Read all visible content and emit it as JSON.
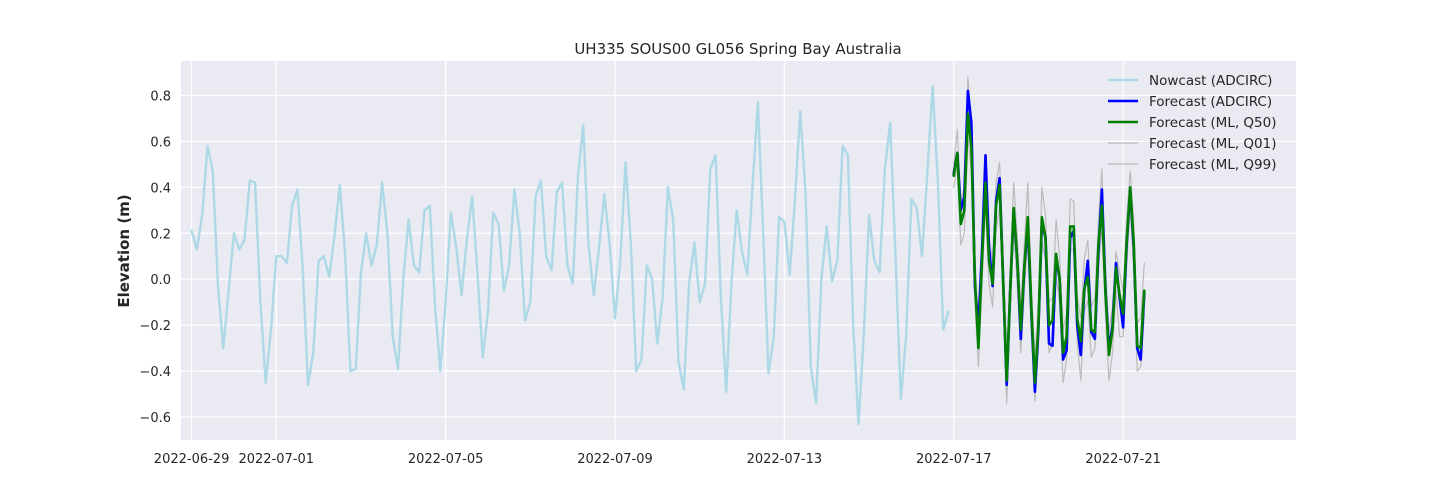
{
  "chart_data": {
    "type": "line",
    "title": "UH335 SOUS00 GL056 Spring Bay Australia",
    "xlabel": "",
    "ylabel": "Elevation (m)",
    "x_axis": "date",
    "xlim": [
      "2022-06-28T18:00",
      "2022-07-25T02:00"
    ],
    "ylim": [
      -0.7,
      0.95
    ],
    "x_ticks": [
      "2022-06-29",
      "2022-07-01",
      "2022-07-05",
      "2022-07-09",
      "2022-07-13",
      "2022-07-17",
      "2022-07-21"
    ],
    "y_ticks": [
      -0.6,
      -0.4,
      -0.2,
      0.0,
      0.2,
      0.4,
      0.6,
      0.8
    ],
    "y_tick_labels": [
      "−0.6",
      "−0.4",
      "−0.2",
      "0.0",
      "0.2",
      "0.4",
      "0.6",
      "0.8"
    ],
    "grid": true,
    "legend_position": "top-right",
    "background": "#eaeaf2",
    "series": [
      {
        "name": "Nowcast (ADCIRC)",
        "color": "#add8e6",
        "x_start": "2022-06-29T00:00",
        "step_hours": 3,
        "values": [
          0.21,
          0.13,
          0.28,
          0.58,
          0.47,
          -0.03,
          -0.3,
          -0.05,
          0.2,
          0.13,
          0.17,
          0.43,
          0.42,
          -0.1,
          -0.45,
          -0.22,
          0.1,
          0.1,
          0.07,
          0.32,
          0.39,
          0.05,
          -0.46,
          -0.32,
          0.08,
          0.1,
          0.01,
          0.19,
          0.41,
          0.11,
          -0.4,
          -0.39,
          0.03,
          0.2,
          0.06,
          0.15,
          0.42,
          0.2,
          -0.25,
          -0.39,
          0.0,
          0.26,
          0.06,
          0.03,
          0.3,
          0.32,
          -0.12,
          -0.4,
          -0.1,
          0.29,
          0.14,
          -0.07,
          0.17,
          0.36,
          0.03,
          -0.34,
          -0.14,
          0.29,
          0.24,
          -0.05,
          0.06,
          0.39,
          0.2,
          -0.18,
          -0.1,
          0.36,
          0.43,
          0.1,
          0.04,
          0.38,
          0.42,
          0.06,
          -0.02,
          0.45,
          0.67,
          0.15,
          -0.07,
          0.14,
          0.37,
          0.15,
          -0.17,
          0.08,
          0.51,
          0.15,
          -0.4,
          -0.35,
          0.06,
          0.0,
          -0.28,
          -0.08,
          0.4,
          0.26,
          -0.36,
          -0.48,
          -0.02,
          0.16,
          -0.1,
          -0.02,
          0.48,
          0.54,
          -0.08,
          -0.49,
          -0.02,
          0.3,
          0.12,
          0.02,
          0.41,
          0.77,
          0.2,
          -0.41,
          -0.25,
          0.27,
          0.25,
          0.02,
          0.35,
          0.73,
          0.38,
          -0.38,
          -0.54,
          0.0,
          0.23,
          -0.01,
          0.08,
          0.58,
          0.54,
          -0.2,
          -0.63,
          -0.24,
          0.28,
          0.08,
          0.03,
          0.48,
          0.68,
          0.1,
          -0.52,
          -0.25,
          0.35,
          0.31,
          0.1,
          0.46,
          0.84,
          0.42,
          -0.22,
          -0.14
        ]
      },
      {
        "name": "Forecast (ADCIRC)",
        "color": "#0000ff",
        "x_start": "2022-07-17T00:00",
        "step_hours": 2,
        "values": [
          0.46,
          0.55,
          0.3,
          0.36,
          0.82,
          0.68,
          -0.03,
          -0.2,
          0.12,
          0.54,
          0.14,
          -0.03,
          0.34,
          0.44,
          0.0,
          -0.46,
          -0.05,
          0.3,
          0.08,
          -0.26,
          0.05,
          0.24,
          -0.15,
          -0.49,
          -0.22,
          0.25,
          0.18,
          -0.28,
          -0.29,
          0.1,
          0.0,
          -0.35,
          -0.31,
          0.18,
          0.21,
          -0.2,
          -0.33,
          -0.05,
          0.08,
          -0.23,
          -0.26,
          0.12,
          0.39,
          -0.05,
          -0.31,
          -0.2,
          0.07,
          -0.08,
          -0.21,
          0.15,
          0.39,
          0.14,
          -0.3,
          -0.35,
          -0.06
        ]
      },
      {
        "name": "Forecast (ML, Q50)",
        "color": "#008000",
        "x_start": "2022-07-17T00:00",
        "step_hours": 2,
        "values": [
          0.45,
          0.55,
          0.24,
          0.3,
          0.72,
          0.57,
          0.0,
          -0.3,
          0.08,
          0.42,
          0.08,
          -0.02,
          0.32,
          0.41,
          0.0,
          -0.44,
          -0.05,
          0.31,
          0.08,
          -0.22,
          0.05,
          0.27,
          -0.13,
          -0.45,
          -0.2,
          0.27,
          0.18,
          -0.2,
          -0.18,
          0.11,
          0.0,
          -0.32,
          -0.25,
          0.23,
          0.23,
          -0.17,
          -0.27,
          -0.04,
          0.01,
          -0.22,
          -0.23,
          0.15,
          0.32,
          -0.06,
          -0.33,
          -0.22,
          0.05,
          -0.07,
          -0.15,
          0.16,
          0.4,
          0.16,
          -0.29,
          -0.3,
          -0.05
        ]
      },
      {
        "name": "Forecast (ML, Q01)",
        "color": "#bbbbbb",
        "x_start": "2022-07-17T00:00",
        "step_hours": 2,
        "values": [
          0.4,
          0.49,
          0.15,
          0.2,
          0.62,
          0.47,
          -0.1,
          -0.38,
          -0.02,
          0.32,
          -0.02,
          -0.12,
          0.22,
          0.31,
          -0.1,
          -0.54,
          -0.15,
          0.21,
          -0.02,
          -0.32,
          -0.05,
          0.17,
          -0.23,
          -0.53,
          -0.3,
          0.17,
          0.08,
          -0.32,
          -0.28,
          0.01,
          -0.1,
          -0.45,
          -0.35,
          0.13,
          0.13,
          -0.27,
          -0.44,
          -0.14,
          -0.09,
          -0.34,
          -0.3,
          0.05,
          0.22,
          -0.16,
          -0.44,
          -0.32,
          -0.05,
          -0.25,
          -0.25,
          0.06,
          0.3,
          0.06,
          -0.4,
          -0.38,
          -0.15
        ]
      },
      {
        "name": "Forecast (ML, Q99)",
        "color": "#bbbbbb",
        "x_start": "2022-07-17T00:00",
        "step_hours": 2,
        "values": [
          0.5,
          0.65,
          0.34,
          0.4,
          0.88,
          0.67,
          0.1,
          -0.2,
          0.18,
          0.52,
          0.18,
          0.08,
          0.42,
          0.51,
          0.1,
          -0.34,
          0.05,
          0.42,
          0.18,
          -0.12,
          0.15,
          0.42,
          -0.03,
          -0.35,
          -0.1,
          0.4,
          0.28,
          -0.1,
          -0.08,
          0.26,
          0.1,
          -0.22,
          -0.15,
          0.35,
          0.34,
          -0.07,
          -0.17,
          0.09,
          0.17,
          -0.12,
          -0.08,
          0.25,
          0.48,
          0.04,
          -0.23,
          -0.12,
          0.12,
          0.03,
          -0.05,
          0.26,
          0.47,
          0.26,
          -0.19,
          -0.17,
          0.07
        ]
      }
    ]
  }
}
